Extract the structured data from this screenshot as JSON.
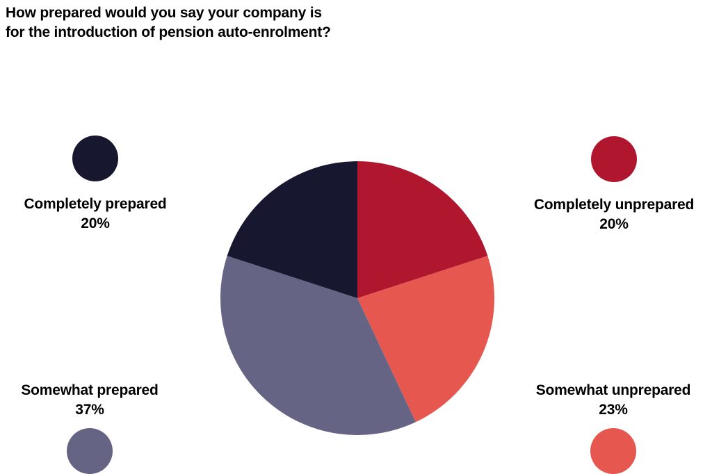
{
  "page": {
    "background": "#ffffff",
    "text_color": "#000000"
  },
  "title": {
    "line1": "How prepared would you say your company is",
    "line2": "for the introduction of pension auto-enrolment?"
  },
  "chart_data": {
    "type": "pie",
    "title": "How prepared would you say your company is for the introduction of pension auto-enrolment?",
    "start_angle_deg": 0,
    "direction": "clockwise",
    "legend_position": "corners",
    "slices": [
      {
        "label": "Completely unprepared",
        "value": 20,
        "percent_label": "20%",
        "color": "#b0172f",
        "legend_corner": "top-right"
      },
      {
        "label": "Somewhat unprepared",
        "value": 23,
        "percent_label": "23%",
        "color": "#e5574f",
        "legend_corner": "bottom-right"
      },
      {
        "label": "Somewhat prepared",
        "value": 37,
        "percent_label": "37%",
        "color": "#666484",
        "legend_corner": "bottom-left"
      },
      {
        "label": "Completely prepared",
        "value": 20,
        "percent_label": "20%",
        "color": "#171730",
        "legend_corner": "top-left"
      }
    ]
  }
}
